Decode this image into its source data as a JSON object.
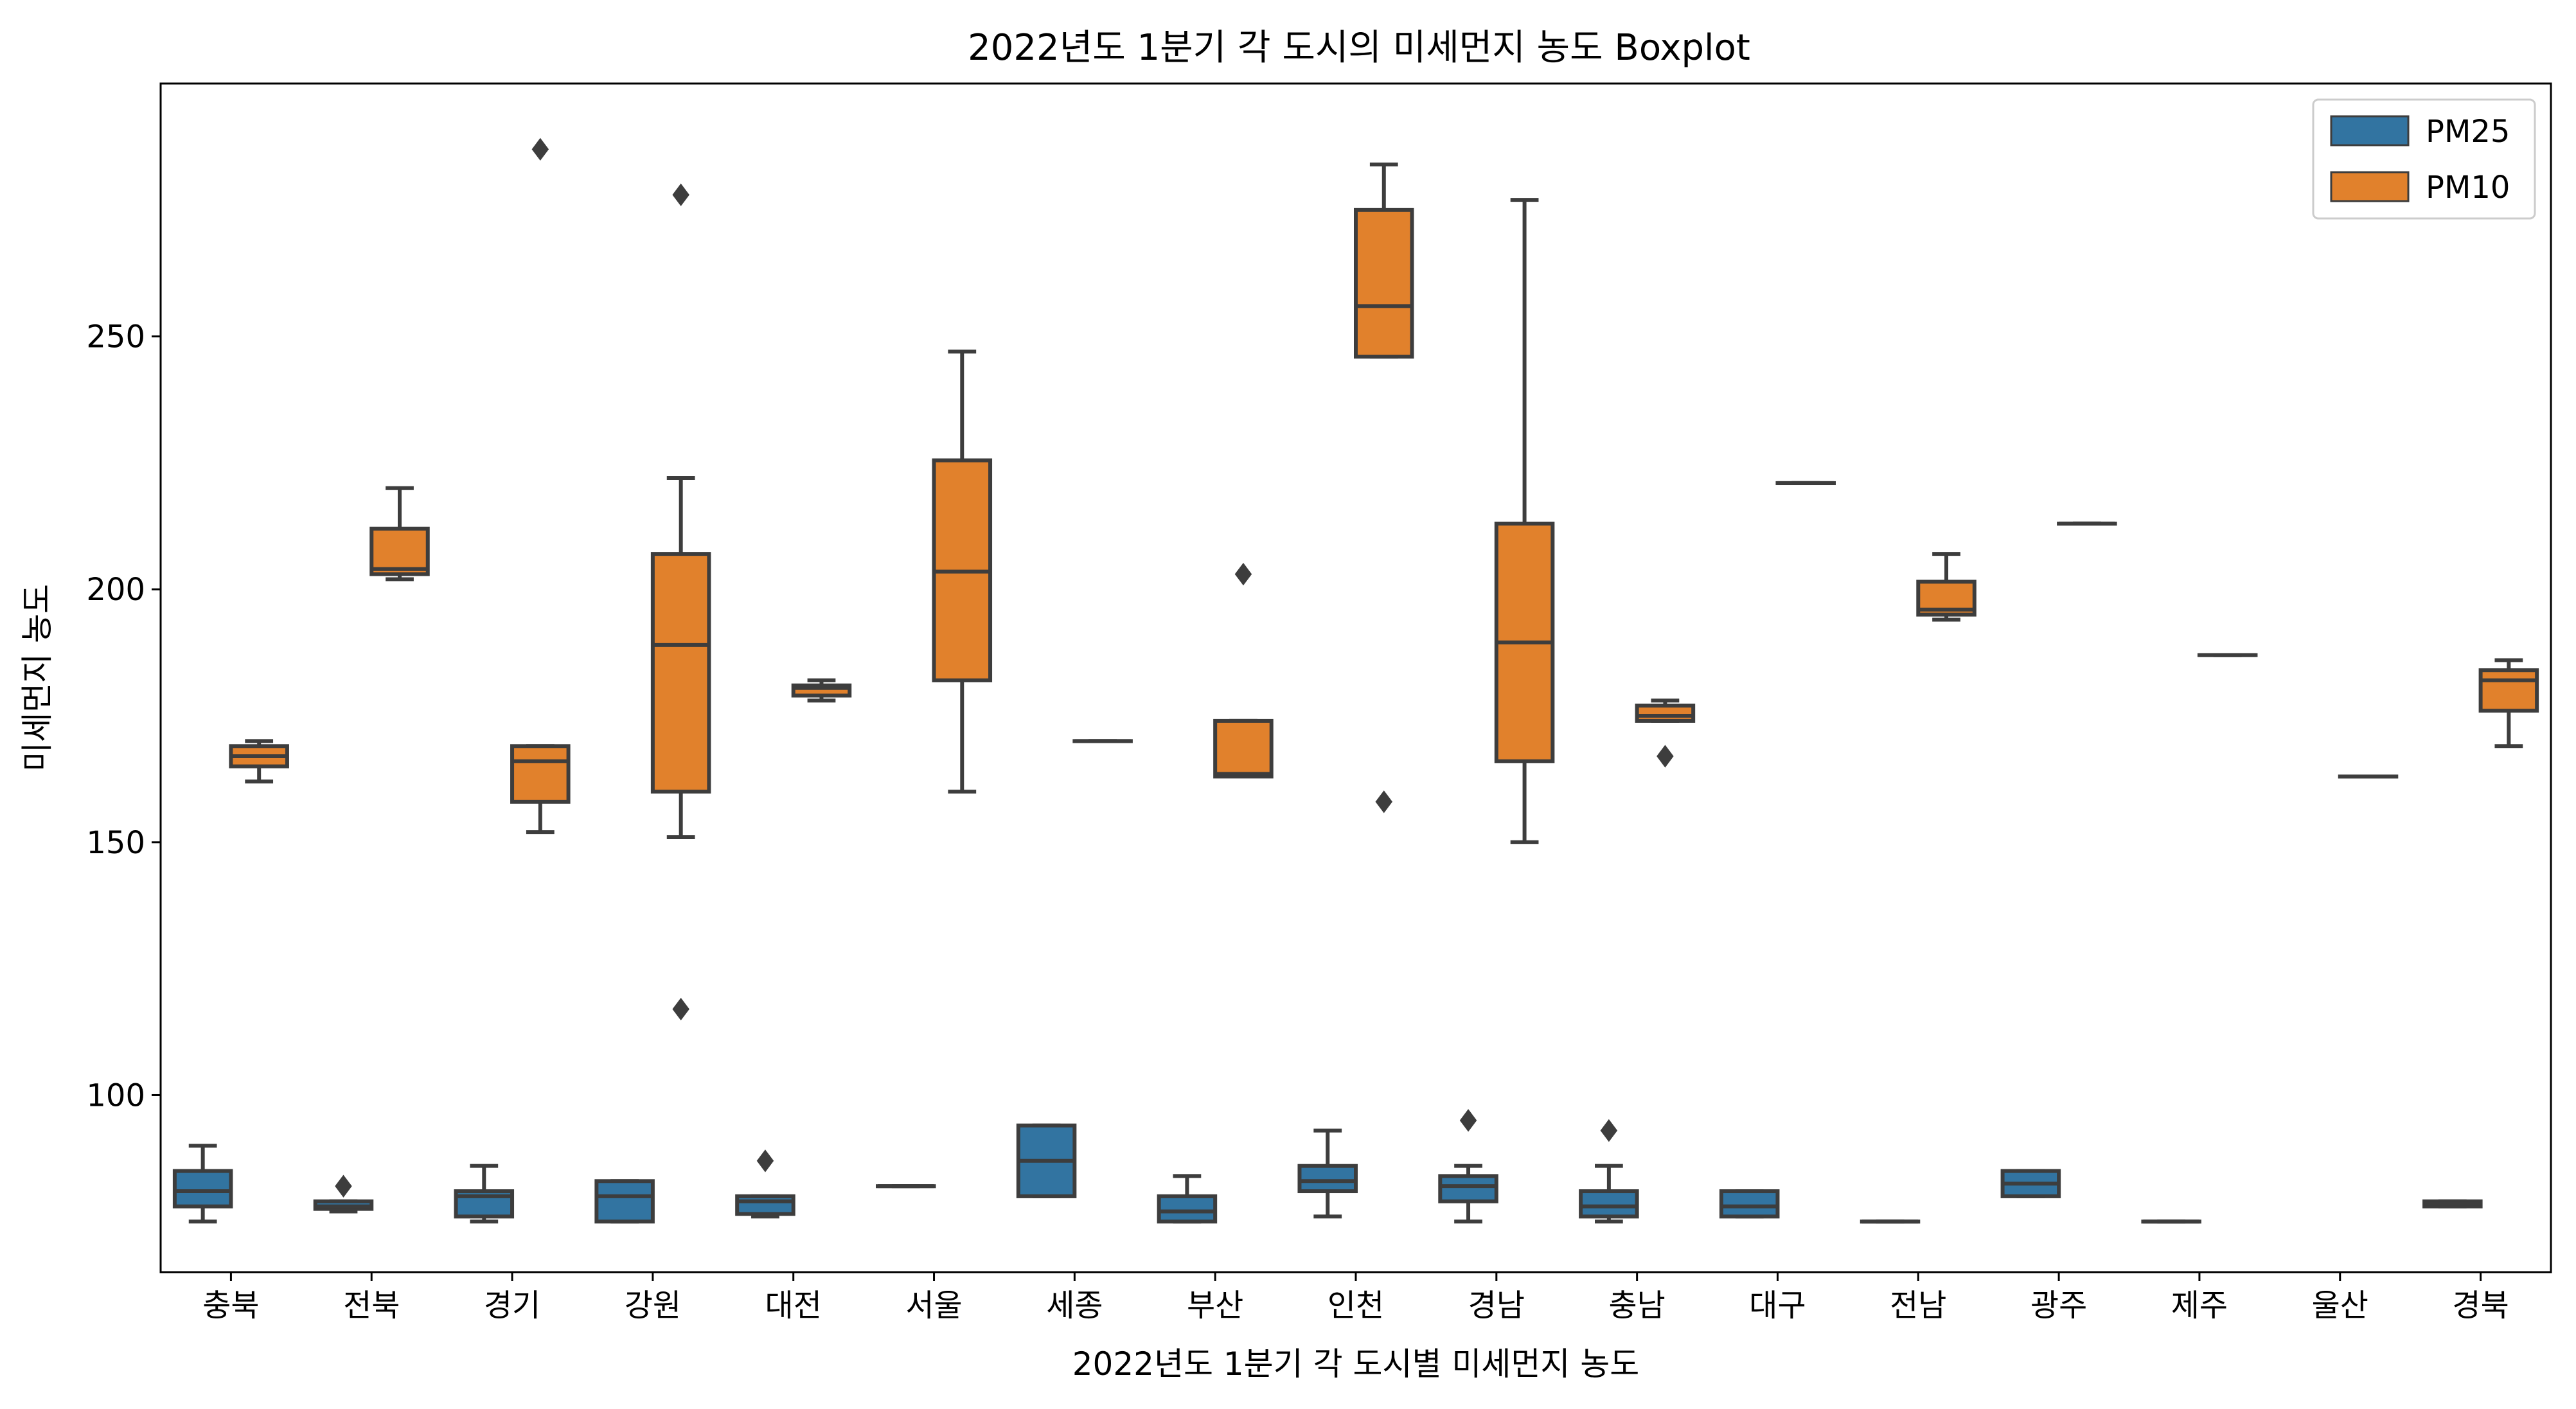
{
  "chart_data": {
    "type": "boxplot",
    "title": "2022년도 1분기 각 도시의 미세먼지 농도 Boxplot",
    "xlabel": "2022년도 1분기 각 도시별 미세먼지 농도",
    "ylabel": "미세먼지 농도",
    "ylim": [
      65,
      300
    ],
    "yticks": [
      100,
      150,
      200,
      250
    ],
    "grid": false,
    "legend_position": "top-right",
    "categories": [
      "충북",
      "전북",
      "경기",
      "강원",
      "대전",
      "서울",
      "세종",
      "부산",
      "인천",
      "경남",
      "충남",
      "대구",
      "전남",
      "광주",
      "제주",
      "울산",
      "경북"
    ],
    "series": [
      {
        "name": "PM25",
        "color": "#3274a1",
        "boxes": [
          {
            "whisker_low": 75,
            "q1": 78,
            "median": 81,
            "q3": 85,
            "whisker_high": 90,
            "outliers": []
          },
          {
            "whisker_low": 77,
            "q1": 77.5,
            "median": 78,
            "q3": 79,
            "whisker_high": 79,
            "outliers": [
              82
            ]
          },
          {
            "whisker_low": 75,
            "q1": 76,
            "median": 80,
            "q3": 81,
            "whisker_high": 86,
            "outliers": []
          },
          {
            "whisker_low": 75,
            "q1": 75,
            "median": 80,
            "q3": 83,
            "whisker_high": 83,
            "outliers": []
          },
          {
            "whisker_low": 76,
            "q1": 76.5,
            "median": 79,
            "q3": 80,
            "whisker_high": 80,
            "outliers": [
              87
            ]
          },
          {
            "whisker_low": 82,
            "q1": 82,
            "median": 82,
            "q3": 82,
            "whisker_high": 82,
            "outliers": []
          },
          {
            "whisker_low": 80,
            "q1": 80,
            "median": 87,
            "q3": 94,
            "whisker_high": 94,
            "outliers": []
          },
          {
            "whisker_low": 75,
            "q1": 75,
            "median": 77,
            "q3": 80,
            "whisker_high": 84,
            "outliers": []
          },
          {
            "whisker_low": 76,
            "q1": 81,
            "median": 83,
            "q3": 86,
            "whisker_high": 93,
            "outliers": []
          },
          {
            "whisker_low": 75,
            "q1": 79,
            "median": 82,
            "q3": 84,
            "whisker_high": 86,
            "outliers": [
              95
            ]
          },
          {
            "whisker_low": 75,
            "q1": 76,
            "median": 78,
            "q3": 81,
            "whisker_high": 86,
            "outliers": [
              93
            ]
          },
          {
            "whisker_low": 76,
            "q1": 76,
            "median": 78,
            "q3": 81,
            "whisker_high": 81,
            "outliers": []
          },
          {
            "whisker_low": 75,
            "q1": 75,
            "median": 75,
            "q3": 75,
            "whisker_high": 75,
            "outliers": []
          },
          {
            "whisker_low": 80,
            "q1": 80,
            "median": 82.5,
            "q3": 85,
            "whisker_high": 85,
            "outliers": []
          },
          {
            "whisker_low": 75,
            "q1": 75,
            "median": 75,
            "q3": 75,
            "whisker_high": 75,
            "outliers": []
          },
          null,
          {
            "whisker_low": 78,
            "q1": 78,
            "median": 78.5,
            "q3": 79,
            "whisker_high": 79,
            "outliers": []
          }
        ]
      },
      {
        "name": "PM10",
        "color": "#e1812c",
        "boxes": [
          {
            "whisker_low": 162,
            "q1": 165,
            "median": 167,
            "q3": 169,
            "whisker_high": 170,
            "outliers": []
          },
          {
            "whisker_low": 202,
            "q1": 203,
            "median": 204,
            "q3": 212,
            "whisker_high": 220,
            "outliers": []
          },
          {
            "whisker_low": 152,
            "q1": 158,
            "median": 166,
            "q3": 169,
            "whisker_high": 169,
            "outliers": [
              287
            ]
          },
          {
            "whisker_low": 151,
            "q1": 160,
            "median": 189,
            "q3": 207,
            "whisker_high": 222,
            "outliers": [
              117,
              278
            ]
          },
          {
            "whisker_low": 178,
            "q1": 179,
            "median": 180.5,
            "q3": 181,
            "whisker_high": 182,
            "outliers": []
          },
          {
            "whisker_low": 160,
            "q1": 182,
            "median": 203.5,
            "q3": 225.5,
            "whisker_high": 247,
            "outliers": []
          },
          {
            "whisker_low": 170,
            "q1": 170,
            "median": 170,
            "q3": 170,
            "whisker_high": 170,
            "outliers": []
          },
          {
            "whisker_low": 163,
            "q1": 163,
            "median": 163.5,
            "q3": 174,
            "whisker_high": 174,
            "outliers": [
              203
            ]
          },
          {
            "whisker_low": 246,
            "q1": 246,
            "median": 256,
            "q3": 275,
            "whisker_high": 284,
            "outliers": [
              158
            ]
          },
          {
            "whisker_low": 150,
            "q1": 166,
            "median": 189.5,
            "q3": 213,
            "whisker_high": 277,
            "outliers": []
          },
          {
            "whisker_low": 174,
            "q1": 174,
            "median": 175,
            "q3": 177,
            "whisker_high": 178,
            "outliers": [
              167
            ]
          },
          {
            "whisker_low": 221,
            "q1": 221,
            "median": 221,
            "q3": 221,
            "whisker_high": 221,
            "outliers": []
          },
          {
            "whisker_low": 194,
            "q1": 195,
            "median": 196,
            "q3": 201.5,
            "whisker_high": 207,
            "outliers": []
          },
          {
            "whisker_low": 213,
            "q1": 213,
            "median": 213,
            "q3": 213,
            "whisker_high": 213,
            "outliers": []
          },
          {
            "whisker_low": 187,
            "q1": 187,
            "median": 187,
            "q3": 187,
            "whisker_high": 187,
            "outliers": []
          },
          {
            "whisker_low": 163,
            "q1": 163,
            "median": 163,
            "q3": 163,
            "whisker_high": 163,
            "outliers": []
          },
          {
            "whisker_low": 169,
            "q1": 176,
            "median": 182,
            "q3": 184,
            "whisker_high": 186,
            "outliers": []
          }
        ]
      }
    ],
    "line_color": "#3d3d3d"
  }
}
